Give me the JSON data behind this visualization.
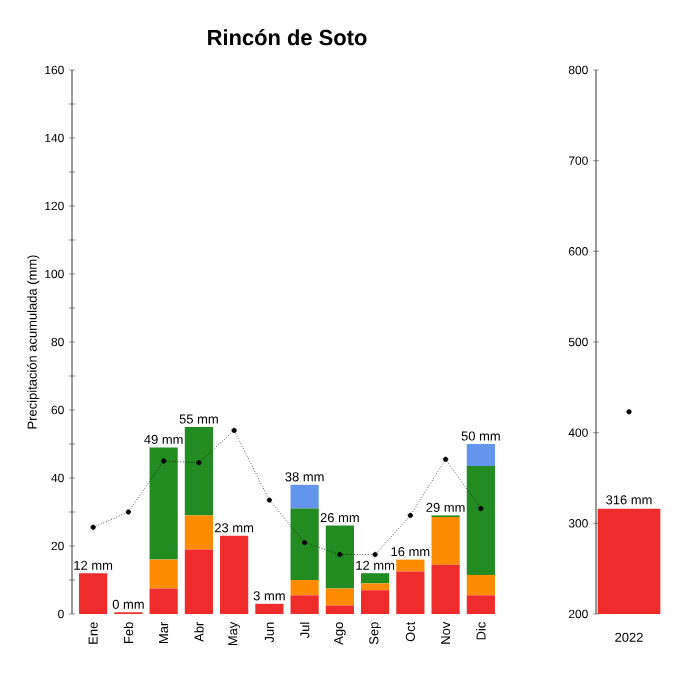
{
  "chart_data": [
    {
      "type": "bar",
      "title": "Rincón de Soto",
      "ylabel": "Precipitación acumulada (mm)",
      "stacked": true,
      "legend": false,
      "grid": false,
      "categories": [
        "Ene",
        "Feb",
        "Mar",
        "Abr",
        "May",
        "Jun",
        "Jul",
        "Ago",
        "Sep",
        "Oct",
        "Nov",
        "Dic"
      ],
      "series": [
        {
          "color": "#ee2c2c",
          "values": [
            12,
            0.5,
            7.5,
            19,
            23,
            3,
            5.5,
            2.5,
            7,
            12.5,
            14.5,
            5.5
          ]
        },
        {
          "color": "#ff8c00",
          "values": [
            null,
            null,
            8.5,
            10,
            null,
            null,
            4.5,
            5,
            2,
            3.5,
            14,
            6
          ]
        },
        {
          "color": "#228b22",
          "values": [
            null,
            null,
            33,
            26,
            null,
            null,
            21,
            18.5,
            3,
            null,
            0.5,
            32
          ]
        },
        {
          "color": "#6495ed",
          "values": [
            null,
            null,
            null,
            null,
            null,
            null,
            7,
            null,
            null,
            null,
            null,
            6.5
          ]
        },
        {
          "type": "line",
          "color": "#000000",
          "marker": "circle",
          "line_style": "dotted",
          "values": [
            25.5,
            30,
            45,
            44.5,
            54,
            33.5,
            21,
            17.5,
            17.5,
            29,
            45.5,
            31
          ]
        }
      ],
      "totals": [
        "12 mm",
        "0 mm",
        "49 mm",
        "55 mm",
        "23 mm",
        "3 mm",
        "38 mm",
        "26 mm",
        "12 mm",
        "16 mm",
        "29 mm",
        "50 mm"
      ],
      "ylim": [
        0,
        160
      ],
      "yticks": [
        0,
        {
          "value": 10,
          "label": null
        },
        20,
        {
          "value": 30,
          "label": null
        },
        40,
        {
          "value": 50,
          "label": null
        },
        60,
        {
          "value": 70,
          "label": null
        },
        80,
        {
          "value": 90,
          "label": null
        },
        100,
        {
          "value": 110,
          "label": null
        },
        120,
        {
          "value": 130,
          "label": null
        },
        140,
        {
          "value": 150,
          "label": null
        },
        160
      ]
    },
    {
      "type": "bar",
      "legend": false,
      "grid": false,
      "categories": [
        "2022"
      ],
      "series": [
        {
          "color": "#ee2c2c",
          "values": [
            316
          ],
          "value_labels": [
            "316 mm"
          ]
        },
        {
          "type": "line",
          "color": "#000000",
          "marker": "circle",
          "values": [
            423
          ]
        }
      ],
      "ylim": [
        200,
        800
      ],
      "yticks": [
        200,
        300,
        400,
        500,
        600,
        700,
        800
      ]
    }
  ]
}
